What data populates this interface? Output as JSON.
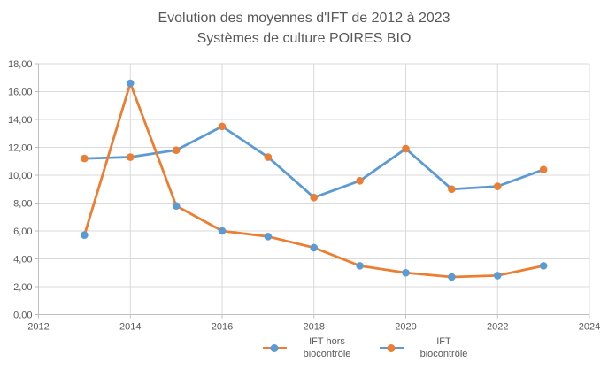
{
  "page": {
    "background": "#FFFFFF"
  },
  "chart_data": {
    "type": "line",
    "title": "Evolution des moyennes d'IFT de 2012 à 2023",
    "subtitle": "Systèmes de culture POIRES BIO",
    "x": [
      2013,
      2014,
      2015,
      2016,
      2017,
      2018,
      2019,
      2020,
      2021,
      2022,
      2023
    ],
    "series": [
      {
        "name": "IFT hors biocontrôle",
        "line_color": "#ED7D31",
        "marker_color": "#5B9BD5",
        "values": [
          5.7,
          16.6,
          7.8,
          6.0,
          5.6,
          4.8,
          3.5,
          3.0,
          2.7,
          2.8,
          3.5
        ]
      },
      {
        "name": "IFT biocontrôle",
        "line_color": "#5B9BD5",
        "marker_color": "#ED7D31",
        "values": [
          11.2,
          11.3,
          11.8,
          13.5,
          11.3,
          8.4,
          9.6,
          11.9,
          9.0,
          9.2,
          10.4
        ]
      }
    ],
    "xlim": [
      2012,
      2024
    ],
    "ylim": [
      0,
      18
    ],
    "x_ticks": [
      "2012",
      "2014",
      "2016",
      "2018",
      "2020",
      "2022",
      "2024"
    ],
    "y_ticks": [
      "0,00",
      "2,00",
      "4,00",
      "6,00",
      "8,00",
      "10,00",
      "12,00",
      "14,00",
      "16,00",
      "18,00"
    ],
    "grid": true,
    "legend_position": "bottom",
    "colors": {
      "gridline": "#D9D9D9",
      "axis": "#BFBFBF",
      "tick_text": "#595959",
      "title_text": "#595959",
      "legend_text": "#595959"
    }
  }
}
